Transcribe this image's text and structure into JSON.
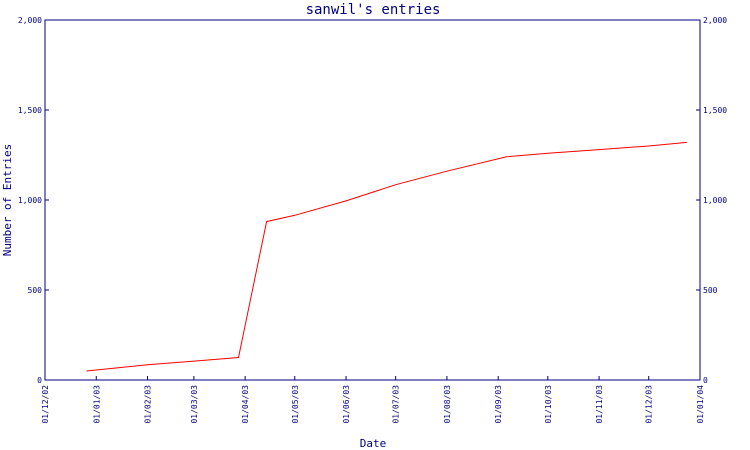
{
  "chart_data": {
    "type": "line",
    "title": "sanwil's entries",
    "xlabel": "Date",
    "ylabel": "Number of Entries",
    "x_tick_labels": [
      "01/12/02",
      "01/01/03",
      "01/02/03",
      "01/03/03",
      "01/04/03",
      "01/05/03",
      "01/06/03",
      "01/07/03",
      "01/08/03",
      "01/09/03",
      "01/10/03",
      "01/11/03",
      "01/12/03",
      "01/01/04"
    ],
    "y_tick_labels": [
      "0",
      "500",
      "1,000",
      "1,500",
      "2,000"
    ],
    "ylim": [
      0,
      2000
    ],
    "grid": false,
    "series": [
      {
        "values": [
          {
            "x": "2002-12-26",
            "y": 50
          },
          {
            "x": "2003-02-01",
            "y": 85
          },
          {
            "x": "2003-03-01",
            "y": 105
          },
          {
            "x": "2003-03-28",
            "y": 125
          },
          {
            "x": "2003-04-14",
            "y": 880
          },
          {
            "x": "2003-05-01",
            "y": 915
          },
          {
            "x": "2003-06-01",
            "y": 995
          },
          {
            "x": "2003-07-01",
            "y": 1085
          },
          {
            "x": "2003-08-01",
            "y": 1160
          },
          {
            "x": "2003-09-06",
            "y": 1240
          },
          {
            "x": "2003-10-01",
            "y": 1260
          },
          {
            "x": "2003-11-01",
            "y": 1280
          },
          {
            "x": "2003-12-01",
            "y": 1300
          },
          {
            "x": "2003-12-24",
            "y": 1320
          }
        ]
      }
    ],
    "colors": {
      "axis": "#000080",
      "line": "#ff0000",
      "text": "#000080"
    }
  }
}
